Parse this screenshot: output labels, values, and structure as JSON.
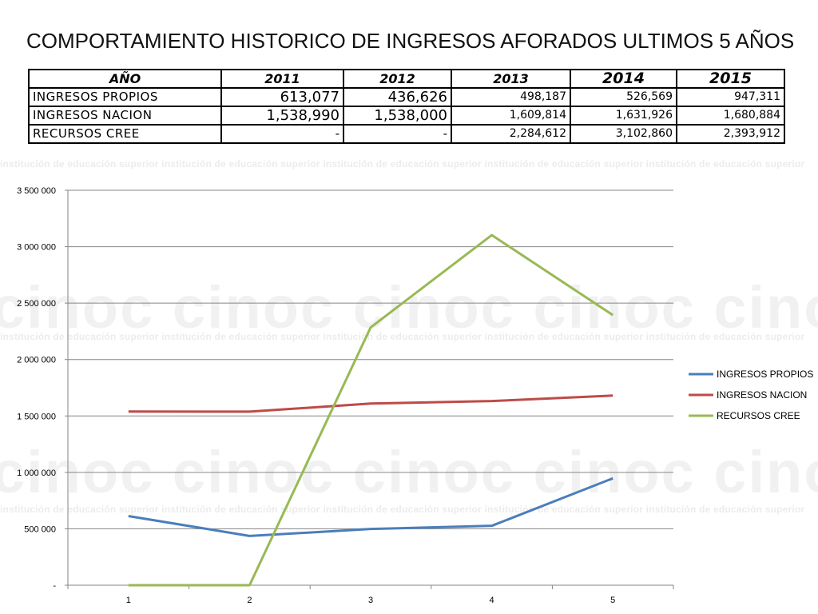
{
  "title": "COMPORTAMIENTO HISTORICO DE INGRESOS AFORADOS  ULTIMOS 5 AÑOS",
  "watermark": {
    "text": "institución de educación superior",
    "logo": "cinoc"
  },
  "table": {
    "header": [
      "AÑO",
      "2011",
      "2012",
      "2013",
      "2014",
      "2015"
    ],
    "rows": [
      {
        "label": "INGRESOS PROPIOS",
        "values": [
          "613,077",
          "436,626",
          "498,187",
          "526,569",
          "947,311"
        ]
      },
      {
        "label": "INGRESOS NACION",
        "values": [
          "1,538,990",
          "1,538,000",
          "1,609,814",
          "1,631,926",
          "1,680,884"
        ]
      },
      {
        "label": "RECURSOS CREE",
        "values": [
          "-",
          "-",
          "2,284,612",
          "3,102,860",
          "2,393,912"
        ]
      }
    ]
  },
  "chart_data": {
    "type": "line",
    "x": [
      1,
      2,
      3,
      4,
      5
    ],
    "x_tick_labels": [
      "1",
      "2",
      "3",
      "4",
      "5"
    ],
    "y_tick_labels": [
      "-",
      "500 000",
      "1 000 000",
      "1 500 000",
      "2 000 000",
      "2 500 000",
      "3 000 000",
      "3 500 000"
    ],
    "y_ticks": [
      0,
      500000,
      1000000,
      1500000,
      2000000,
      2500000,
      3000000,
      3500000
    ],
    "ylim": [
      0,
      3500000
    ],
    "grid": true,
    "legend": "right",
    "series": [
      {
        "name": "INGRESOS PROPIOS",
        "color": "#4a7ebb",
        "values": [
          613077,
          436626,
          498187,
          526569,
          947311
        ]
      },
      {
        "name": "INGRESOS NACION",
        "color": "#be4b48",
        "values": [
          1538990,
          1538000,
          1609814,
          1631926,
          1680884
        ]
      },
      {
        "name": "RECURSOS CREE",
        "color": "#98b954",
        "values": [
          0,
          0,
          2284612,
          3102860,
          2393912
        ]
      }
    ]
  }
}
